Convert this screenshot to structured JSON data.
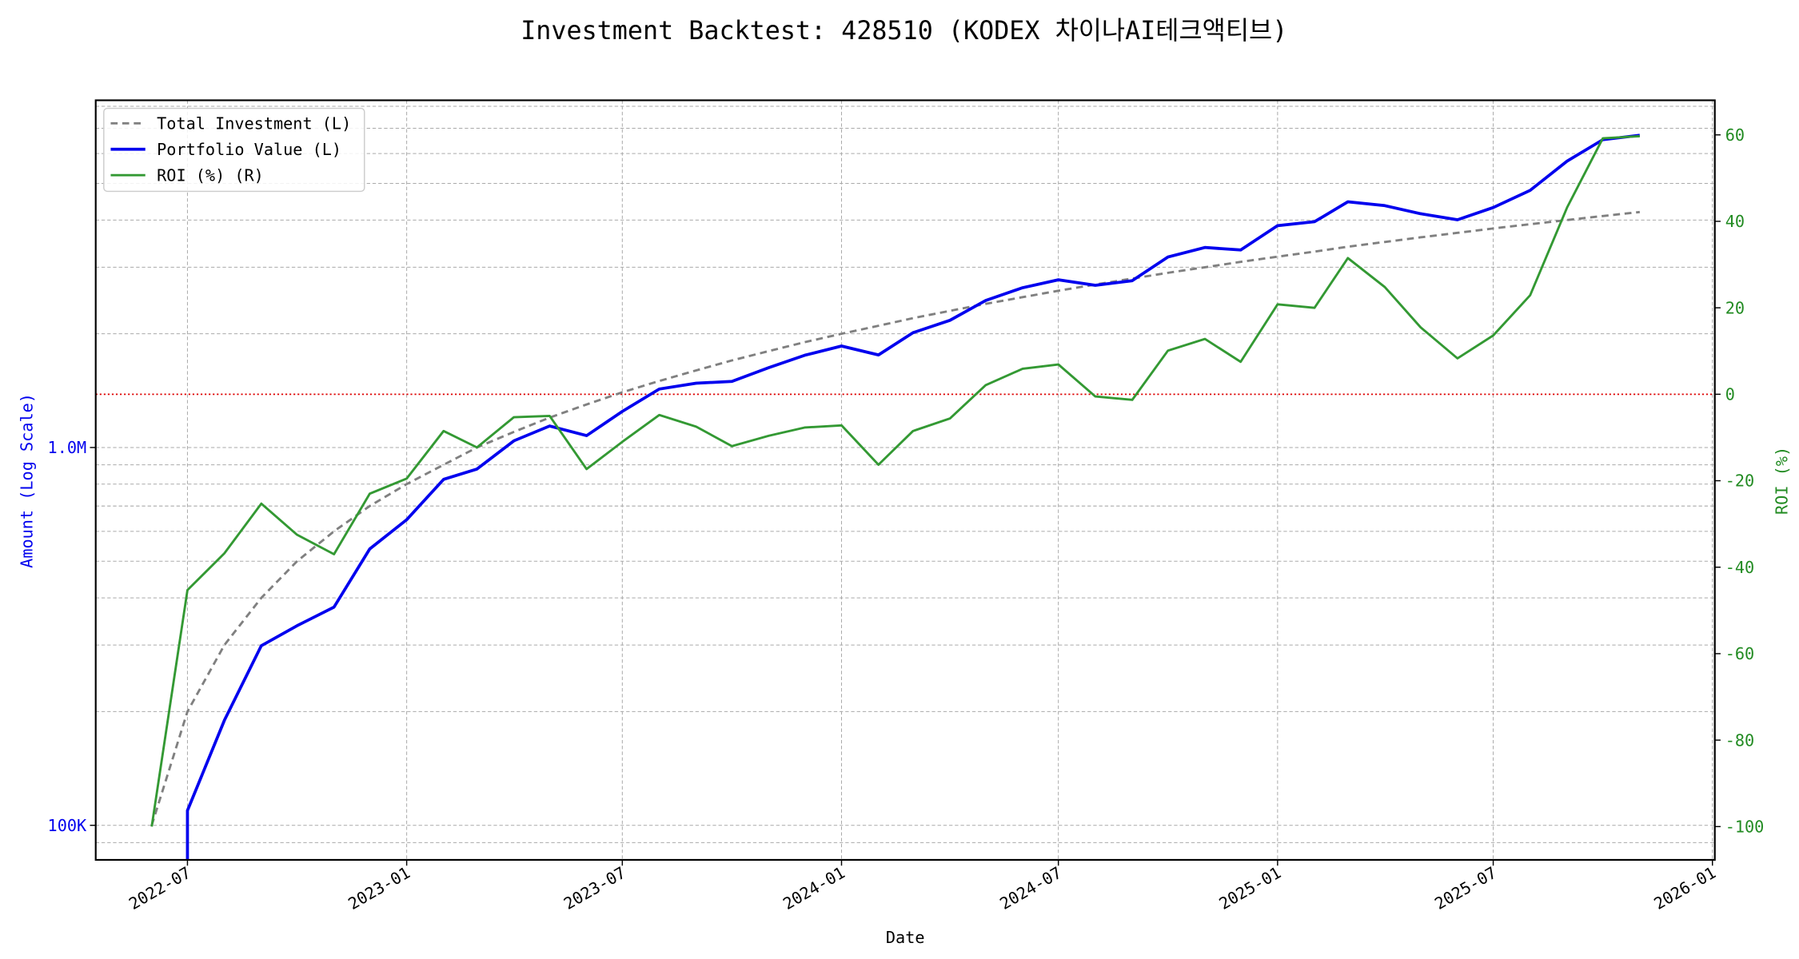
{
  "chart_data": {
    "type": "line",
    "title": "Investment Backtest: 428510 (KODEX 차이나AI테크액티브)",
    "xlabel": "Date",
    "ylabel_left": "Amount (Log Scale)",
    "ylabel_right": "ROI (%)",
    "left_scale": "log",
    "ylim_left": [
      81000,
      8300000
    ],
    "ylim_right": [
      -107.7,
      68
    ],
    "xlim": [
      "2022-04-15",
      "2026-01-03"
    ],
    "grid": true,
    "legend_placement": "top-left",
    "x_tick_labels": [
      "2022-07",
      "2023-01",
      "2023-07",
      "2024-01",
      "2024-07",
      "2025-01",
      "2025-07",
      "2026-01"
    ],
    "left_tick_labels": [
      {
        "value": 100000,
        "label": "100K"
      },
      {
        "value": 1000000,
        "label": "1.0M"
      }
    ],
    "right_tick_labels": [
      -100,
      -80,
      -60,
      -40,
      -20,
      0,
      20,
      40,
      60
    ],
    "reference_line": {
      "axis": "right",
      "value": 0,
      "color": "#dd0000",
      "style": "dotted"
    },
    "x": [
      "2022-06",
      "2022-07",
      "2022-08",
      "2022-09",
      "2022-10",
      "2022-11",
      "2022-12",
      "2023-01",
      "2023-02",
      "2023-03",
      "2023-04",
      "2023-05",
      "2023-06",
      "2023-07",
      "2023-08",
      "2023-09",
      "2023-10",
      "2023-11",
      "2023-12",
      "2024-01",
      "2024-02",
      "2024-03",
      "2024-04",
      "2024-05",
      "2024-06",
      "2024-07",
      "2024-08",
      "2024-09",
      "2024-10",
      "2024-11",
      "2024-12",
      "2025-01",
      "2025-02",
      "2025-03",
      "2025-04",
      "2025-05",
      "2025-06",
      "2025-07",
      "2025-08",
      "2025-09",
      "2025-10",
      "2025-11"
    ],
    "series": [
      {
        "name": "Total Investment (L)",
        "axis": "left",
        "color": "#808080",
        "style": "dashed",
        "values": [
          100000,
          200000,
          300000,
          400000,
          500000,
          600000,
          700000,
          800000,
          900000,
          1000000,
          1100000,
          1200000,
          1300000,
          1400000,
          1500000,
          1600000,
          1700000,
          1800000,
          1900000,
          2000000,
          2100000,
          2200000,
          2300000,
          2400000,
          2500000,
          2600000,
          2700000,
          2800000,
          2900000,
          3000000,
          3100000,
          3200000,
          3300000,
          3400000,
          3500000,
          3600000,
          3700000,
          3800000,
          3900000,
          4000000,
          4100000,
          4200000
        ]
      },
      {
        "name": "Portfolio Value (L)",
        "axis": "left",
        "color": "#0000ee",
        "style": "solid",
        "values": [
          0,
          109400,
          189600,
          298800,
          337500,
          378000,
          539000,
          644000,
          823500,
          877000,
          1041700,
          1140000,
          1075000,
          1246000,
          1428000,
          1480000,
          1496000,
          1627000,
          1754000,
          1856000,
          1758000,
          2013000,
          2171000,
          2450000,
          2648000,
          2779000,
          2687000,
          2764000,
          3193000,
          3384000,
          3333000,
          3866000,
          3960000,
          4471000,
          4368000,
          4158000,
          4007000,
          4317000,
          4793000,
          5728000,
          6527000,
          6707000
        ]
      },
      {
        "name": "ROI (%) (R)",
        "axis": "right",
        "color": "#339933",
        "style": "solid",
        "values": [
          -100,
          -45.3,
          -36.8,
          -25.3,
          -32.5,
          -37,
          -23,
          -19.5,
          -8.5,
          -12.3,
          -5.3,
          -5,
          -17.3,
          -11,
          -4.8,
          -7.5,
          -12,
          -9.6,
          -7.7,
          -7.2,
          -16.3,
          -8.5,
          -5.6,
          2.1,
          5.9,
          6.9,
          -0.5,
          -1.3,
          10.1,
          12.8,
          7.5,
          20.8,
          20,
          31.5,
          24.8,
          15.5,
          8.3,
          13.6,
          22.9,
          43.2,
          59.2,
          59.7
        ]
      }
    ]
  }
}
